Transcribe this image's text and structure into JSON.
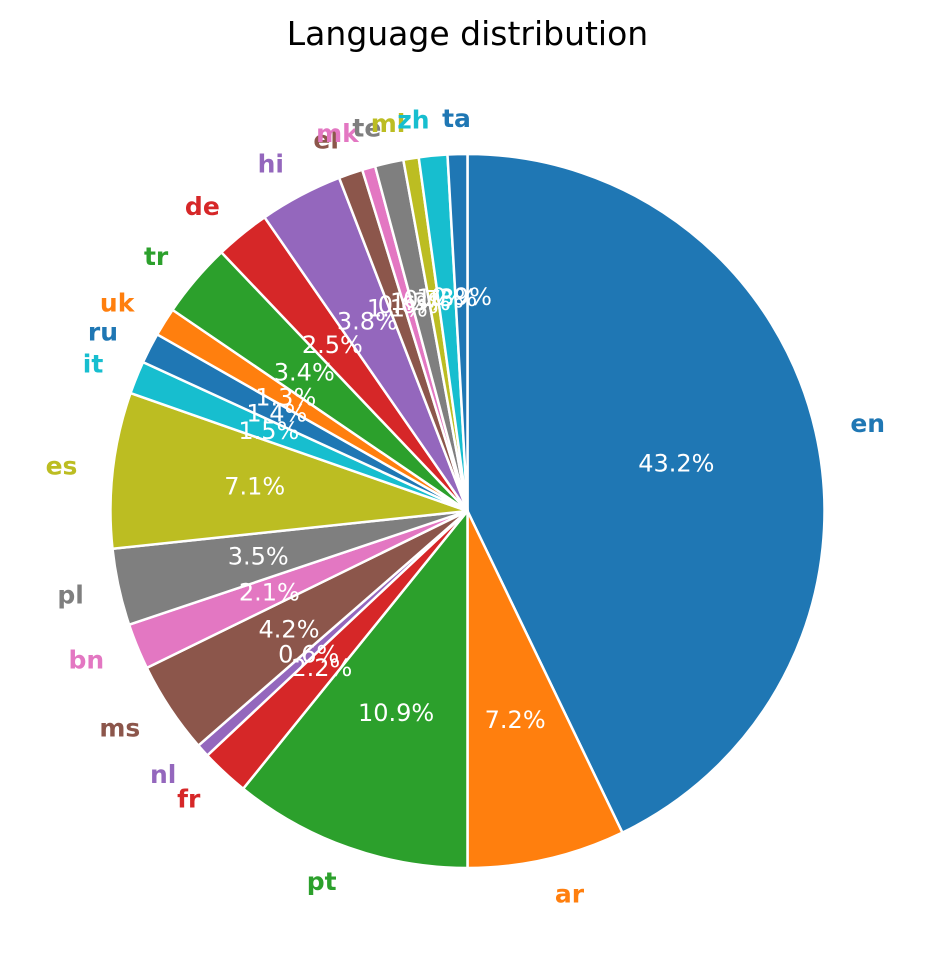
{
  "chart_data": {
    "type": "pie",
    "title": "Language distribution",
    "start_angle_deg": 90,
    "direction": "clockwise",
    "slices": [
      {
        "label": "en",
        "value": 43.2,
        "pct_text": "43.2%",
        "color": "#1f77b4"
      },
      {
        "label": "ar",
        "value": 7.2,
        "pct_text": "7.2%",
        "color": "#ff7f0e"
      },
      {
        "label": "pt",
        "value": 10.9,
        "pct_text": "10.9%",
        "color": "#2ca02c"
      },
      {
        "label": "fr",
        "value": 2.2,
        "pct_text": "2.2%",
        "color": "#d62728"
      },
      {
        "label": "nl",
        "value": 0.6,
        "pct_text": "0.6%",
        "color": "#9467bd"
      },
      {
        "label": "ms",
        "value": 4.2,
        "pct_text": "4.2%",
        "color": "#8c564b"
      },
      {
        "label": "bn",
        "value": 2.1,
        "pct_text": "2.1%",
        "color": "#e377c2"
      },
      {
        "label": "pl",
        "value": 3.5,
        "pct_text": "3.5%",
        "color": "#7f7f7f"
      },
      {
        "label": "es",
        "value": 7.1,
        "pct_text": "7.1%",
        "color": "#bcbd22"
      },
      {
        "label": "it",
        "value": 1.5,
        "pct_text": "1.5%",
        "color": "#17becf"
      },
      {
        "label": "ru",
        "value": 1.4,
        "pct_text": "1.4%",
        "color": "#1f77b4"
      },
      {
        "label": "uk",
        "value": 1.3,
        "pct_text": "1.3%",
        "color": "#ff7f0e"
      },
      {
        "label": "tr",
        "value": 3.4,
        "pct_text": "3.4%",
        "color": "#2ca02c"
      },
      {
        "label": "de",
        "value": 2.5,
        "pct_text": "2.5%",
        "color": "#d62728"
      },
      {
        "label": "hi",
        "value": 3.8,
        "pct_text": "3.8%",
        "color": "#9467bd"
      },
      {
        "label": "el",
        "value": 1.1,
        "pct_text": "1.1%",
        "color": "#8c564b"
      },
      {
        "label": "mk",
        "value": 0.6,
        "pct_text": "0.6%",
        "color": "#e377c2"
      },
      {
        "label": "te",
        "value": 1.3,
        "pct_text": "1.3%",
        "color": "#7f7f7f"
      },
      {
        "label": "ml",
        "value": 0.7,
        "pct_text": "0.7%",
        "color": "#bcbd22"
      },
      {
        "label": "zh",
        "value": 1.3,
        "pct_text": "1.3%",
        "color": "#17becf"
      },
      {
        "label": "ta",
        "value": 0.9,
        "pct_text": "0.9%",
        "color": "#1f77b4"
      }
    ]
  }
}
